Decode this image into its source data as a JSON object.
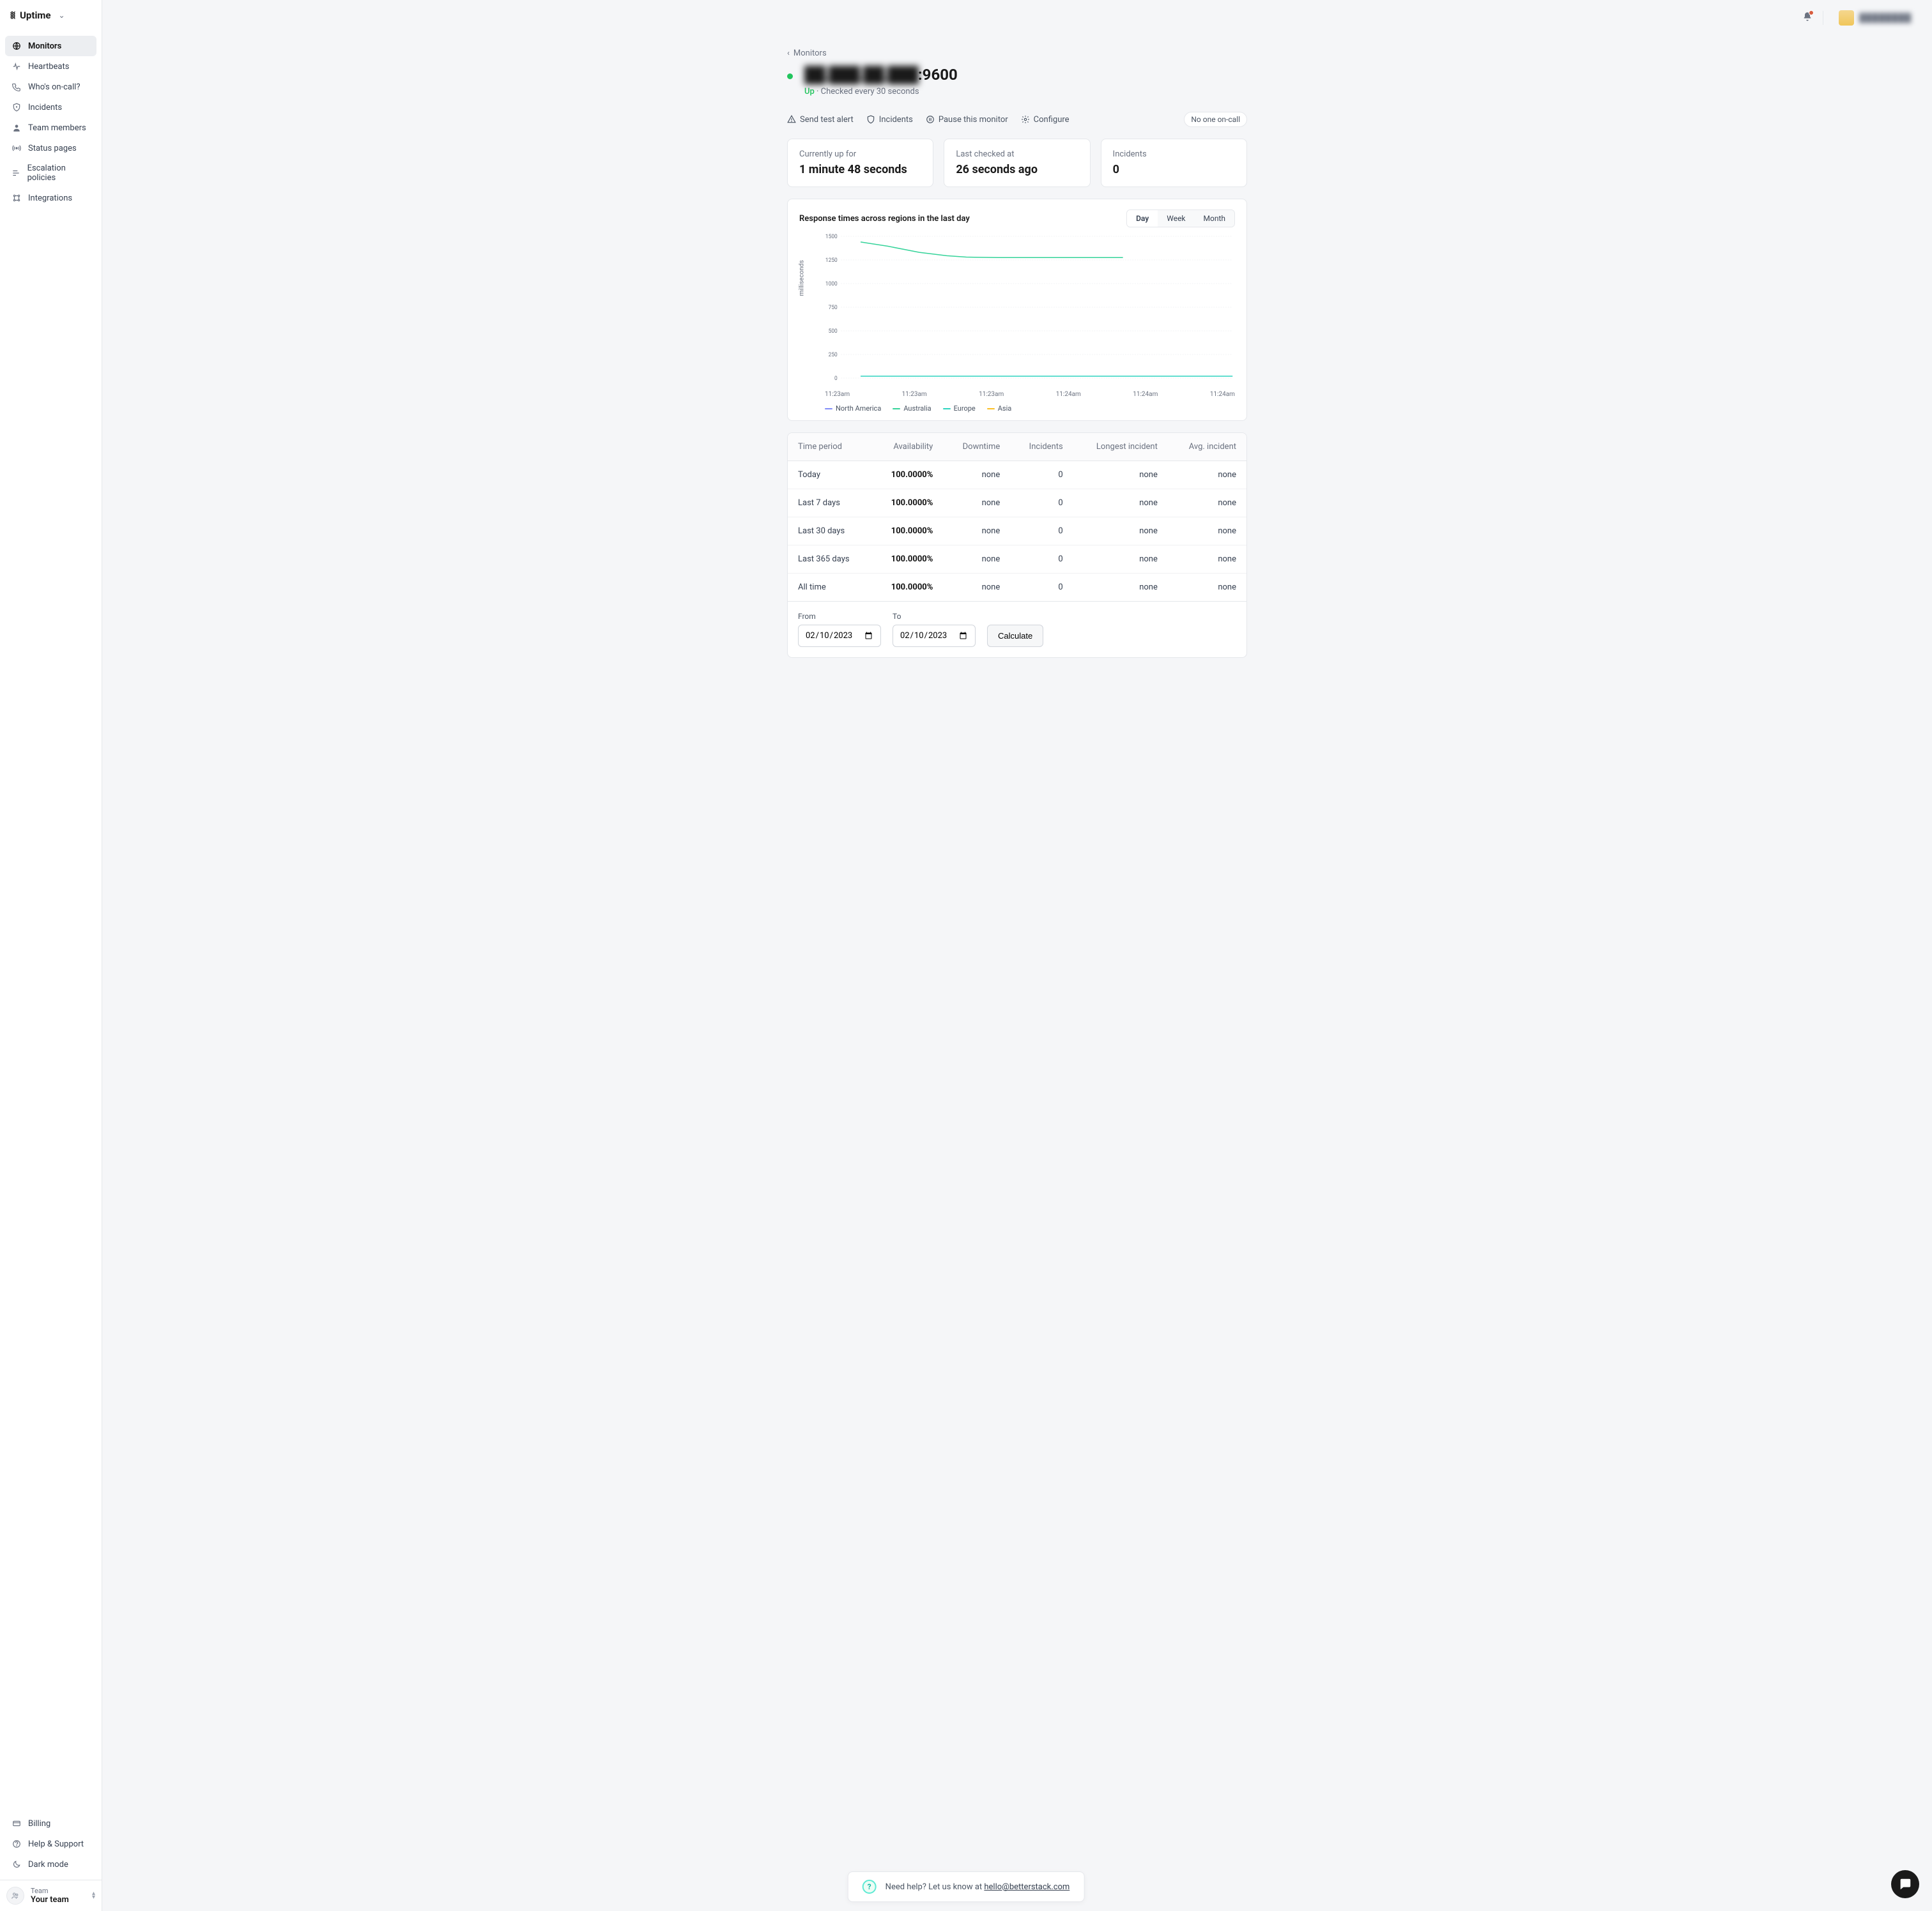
{
  "brand": {
    "name": "Uptime"
  },
  "nav": {
    "items": [
      {
        "label": "Monitors",
        "icon": "globe",
        "active": true
      },
      {
        "label": "Heartbeats",
        "icon": "pulse"
      },
      {
        "label": "Who's on-call?",
        "icon": "phone"
      },
      {
        "label": "Incidents",
        "icon": "shield"
      },
      {
        "label": "Team members",
        "icon": "person"
      },
      {
        "label": "Status pages",
        "icon": "broadcast"
      },
      {
        "label": "Escalation policies",
        "icon": "flow"
      },
      {
        "label": "Integrations",
        "icon": "grid"
      }
    ],
    "bottom": [
      {
        "label": "Billing",
        "icon": "card"
      },
      {
        "label": "Help & Support",
        "icon": "help"
      },
      {
        "label": "Dark mode",
        "icon": "moon"
      }
    ]
  },
  "team": {
    "label": "Team",
    "name": "Your team"
  },
  "user": {
    "name": "████████"
  },
  "breadcrumb": {
    "label": "Monitors"
  },
  "monitor": {
    "host_masked": "██.███.██.███",
    "port": ":9600",
    "status": "Up",
    "check_interval": "Checked every 30 seconds"
  },
  "actions": {
    "send_test": "Send test alert",
    "incidents": "Incidents",
    "pause": "Pause this monitor",
    "configure": "Configure",
    "oncall_badge": "No one on-call"
  },
  "stats": [
    {
      "label": "Currently up for",
      "value": "1 minute 48 seconds"
    },
    {
      "label": "Last checked at",
      "value": "26 seconds ago"
    },
    {
      "label": "Incidents",
      "value": "0"
    }
  ],
  "chart": {
    "title": "Response times across regions in the last day",
    "ranges": [
      "Day",
      "Week",
      "Month"
    ],
    "active_range": "Day",
    "type": "line",
    "y_label": "milliseconds",
    "ylim": [
      0,
      1500
    ],
    "ytick_step": 250,
    "yticks": [
      1500,
      1250,
      1000,
      750,
      500,
      250,
      0
    ],
    "x_ticks": [
      "11:23am",
      "11:23am",
      "11:23am",
      "11:24am",
      "11:24am",
      "11:24am"
    ],
    "grid_color": "#e5e7eb",
    "background_color": "#ffffff",
    "series": [
      {
        "name": "North America",
        "color": "#818cf8",
        "points": []
      },
      {
        "name": "Australia",
        "color": "#34d399",
        "points": [
          {
            "x": 0.05,
            "y": 1440
          },
          {
            "x": 0.12,
            "y": 1395
          },
          {
            "x": 0.2,
            "y": 1330
          },
          {
            "x": 0.27,
            "y": 1295
          },
          {
            "x": 0.32,
            "y": 1280
          },
          {
            "x": 0.4,
            "y": 1275
          },
          {
            "x": 0.5,
            "y": 1275
          },
          {
            "x": 0.6,
            "y": 1275
          },
          {
            "x": 0.68,
            "y": 1275
          },
          {
            "x": 0.72,
            "y": 1275
          }
        ]
      },
      {
        "name": "Europe",
        "color": "#2dd4bf",
        "points": [
          {
            "x": 0.05,
            "y": 20
          },
          {
            "x": 0.2,
            "y": 20
          },
          {
            "x": 0.4,
            "y": 20
          },
          {
            "x": 0.6,
            "y": 20
          },
          {
            "x": 0.8,
            "y": 20
          },
          {
            "x": 1.0,
            "y": 20
          }
        ]
      },
      {
        "name": "Asia",
        "color": "#fbbf24",
        "points": []
      }
    ],
    "line_width": 1.5
  },
  "table": {
    "columns": [
      "Time period",
      "Availability",
      "Downtime",
      "Incidents",
      "Longest incident",
      "Avg. incident"
    ],
    "rows": [
      [
        "Today",
        "100.0000%",
        "none",
        "0",
        "none",
        "none"
      ],
      [
        "Last 7 days",
        "100.0000%",
        "none",
        "0",
        "none",
        "none"
      ],
      [
        "Last 30 days",
        "100.0000%",
        "none",
        "0",
        "none",
        "none"
      ],
      [
        "Last 365 days",
        "100.0000%",
        "none",
        "0",
        "none",
        "none"
      ],
      [
        "All time",
        "100.0000%",
        "none",
        "0",
        "none",
        "none"
      ]
    ]
  },
  "calc": {
    "from_label": "From",
    "to_label": "To",
    "from_value": "2023-02-10",
    "to_value": "2023-02-10",
    "button": "Calculate"
  },
  "help": {
    "text": "Need help? Let us know at ",
    "email": "hello@betterstack.com"
  }
}
